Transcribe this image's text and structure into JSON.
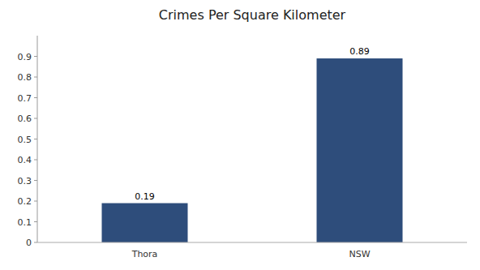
{
  "chart_data": {
    "type": "bar",
    "title": "Crimes Per Square Kilometer",
    "categories": [
      "Thora",
      "NSW"
    ],
    "values": [
      0.19,
      0.89
    ],
    "color": "#2e4d7b",
    "ylim": [
      0,
      1.0
    ],
    "yticks": [
      0,
      0.1,
      0.2,
      0.3,
      0.4,
      0.5,
      0.6,
      0.7,
      0.8,
      0.9
    ],
    "grid": false,
    "data_labels": true
  }
}
